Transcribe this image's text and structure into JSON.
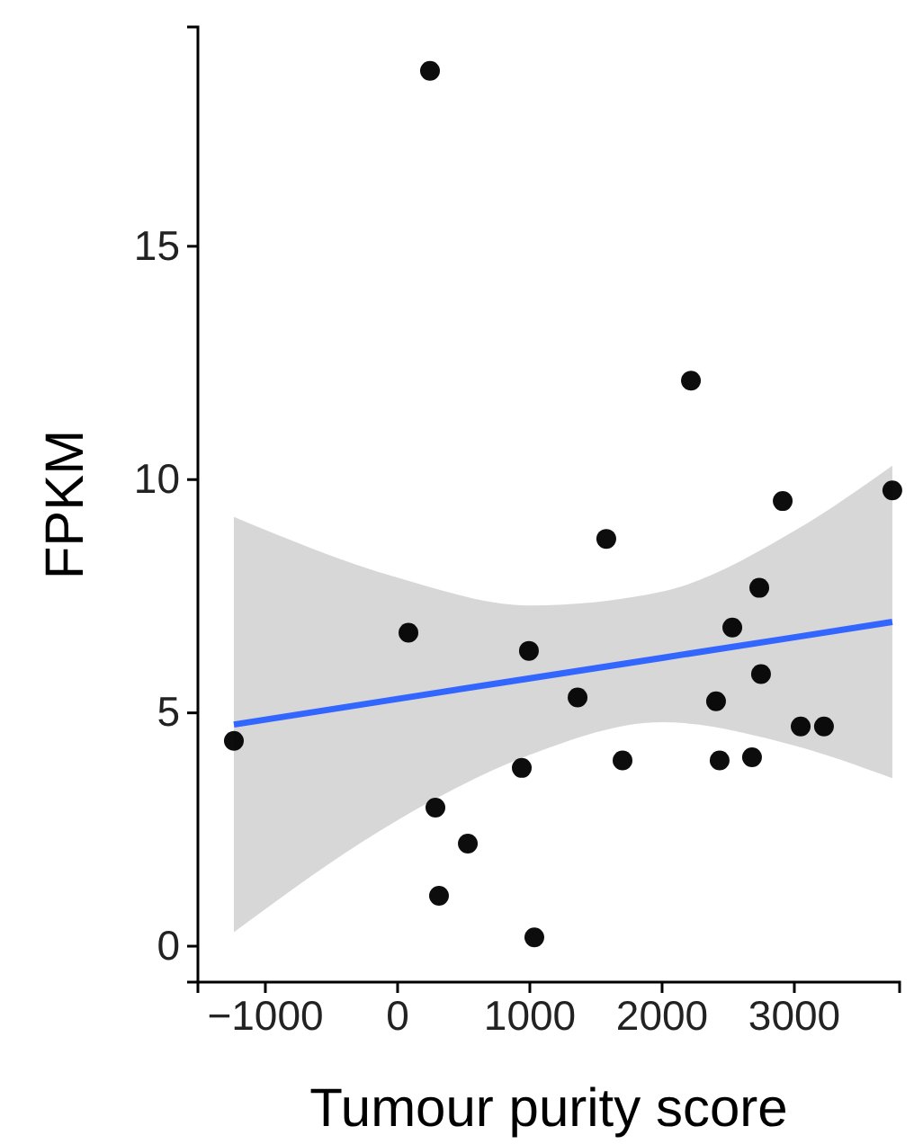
{
  "chart_data": {
    "type": "scatter",
    "xlabel": "Tumour purity score",
    "ylabel": "FPKM",
    "xlim": [
      -1510,
      3796
    ],
    "ylim": [
      -0.77,
      19.7
    ],
    "xticks": [
      {
        "value": -1000,
        "label": "−1000"
      },
      0,
      1000,
      2000,
      3000
    ],
    "yticks": [
      0,
      5,
      10,
      15
    ],
    "grid": false,
    "marker": "circle",
    "series": [
      {
        "type": "line",
        "marker": "none",
        "color": "#3366ff",
        "x": [
          -1238,
          0,
          1000,
          2000,
          3000,
          3741
        ],
        "values": [
          4.75,
          5.3,
          5.74,
          6.18,
          6.62,
          6.95
        ],
        "lower": [
          0.3,
          2.7,
          4.1,
          4.8,
          4.3,
          3.6
        ],
        "upper": [
          9.2,
          7.9,
          7.3,
          7.6,
          8.9,
          10.3
        ]
      },
      {
        "color": "#000000",
        "x": [
          -1238,
          245,
          82,
          286,
          313,
          531,
          939,
          993,
          1034,
          1361,
          1578,
          1701,
          2218,
          2408,
          2435,
          2531,
          2680,
          2735,
          2748,
          2912,
          3048,
          3224,
          3741
        ],
        "values": [
          4.4,
          18.76,
          6.72,
          2.97,
          1.08,
          2.2,
          3.82,
          6.33,
          0.19,
          5.33,
          8.73,
          3.98,
          12.12,
          5.25,
          3.98,
          6.83,
          4.05,
          7.68,
          5.83,
          9.54,
          4.71,
          4.71,
          9.77
        ]
      }
    ]
  }
}
